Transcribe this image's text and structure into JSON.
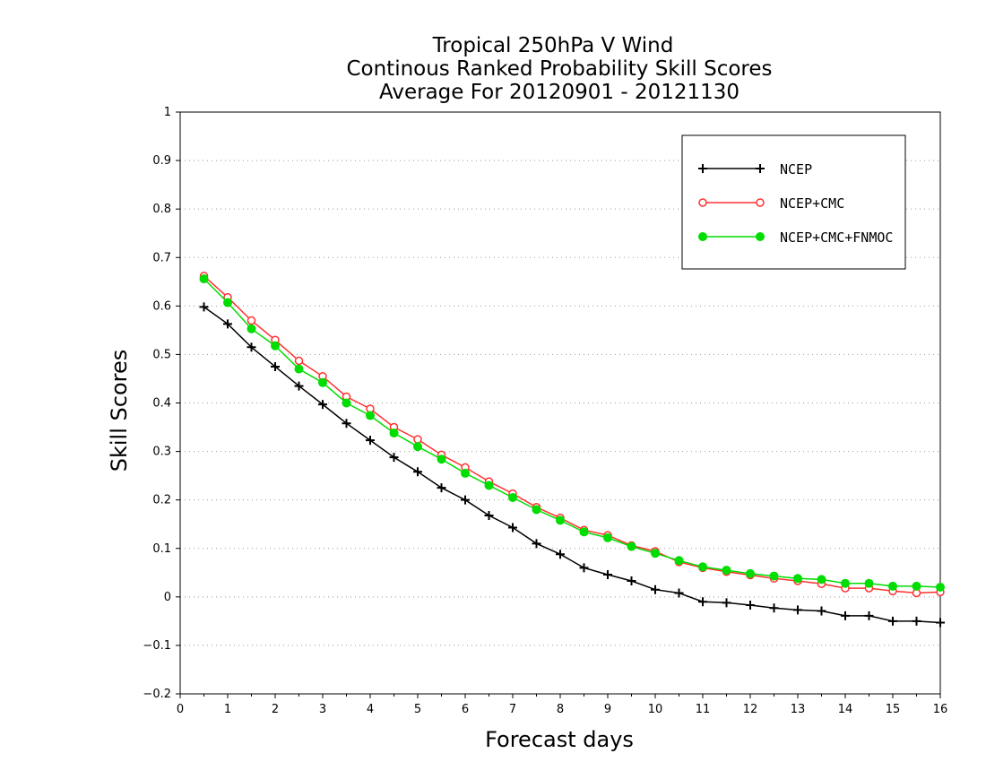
{
  "chart_data": {
    "type": "line",
    "title_lines": [
      "Tropical 250hPa V Wind",
      "Continous Ranked Probability Skill Scores",
      "Average For 20120901 - 20121130"
    ],
    "xlabel": "Forecast days",
    "ylabel": "Skill Scores",
    "xlim": [
      0,
      16
    ],
    "ylim": [
      -0.2,
      1
    ],
    "xticks": [
      0,
      1,
      2,
      3,
      4,
      5,
      6,
      7,
      8,
      9,
      10,
      11,
      12,
      13,
      14,
      15,
      16
    ],
    "xtick_labels": [
      "0",
      "1",
      "2",
      "3",
      "4",
      "5",
      "6",
      "7",
      "8",
      "9",
      "10",
      "11",
      "12",
      "13",
      "14",
      "15",
      "16"
    ],
    "yticks": [
      -0.2,
      -0.1,
      0,
      0.1,
      0.2,
      0.3,
      0.4,
      0.5,
      0.6,
      0.7,
      0.8,
      0.9,
      1
    ],
    "ytick_labels": [
      "−0.2",
      "−0.1",
      "0",
      "0.1",
      "0.2",
      "0.3",
      "0.4",
      "0.5",
      "0.6",
      "0.7",
      "0.8",
      "0.9",
      "1"
    ],
    "grid": "horizontal-dotted",
    "legend_position": "top-right",
    "x": [
      0.5,
      1,
      1.5,
      2,
      2.5,
      3,
      3.5,
      4,
      4.5,
      5,
      5.5,
      6,
      6.5,
      7,
      7.5,
      8,
      8.5,
      9,
      9.5,
      10,
      10.5,
      11,
      11.5,
      12,
      12.5,
      13,
      13.5,
      14,
      14.5,
      15,
      15.5,
      16
    ],
    "series": [
      {
        "name": "NCEP",
        "color": "#000000",
        "marker": "plus",
        "values": [
          0.598,
          0.563,
          0.515,
          0.475,
          0.435,
          0.397,
          0.358,
          0.323,
          0.288,
          0.258,
          0.225,
          0.2,
          0.168,
          0.143,
          0.11,
          0.088,
          0.06,
          0.046,
          0.033,
          0.015,
          0.008,
          -0.01,
          -0.012,
          -0.017,
          -0.023,
          -0.027,
          -0.029,
          -0.039,
          -0.039,
          -0.05,
          -0.05,
          -0.053
        ]
      },
      {
        "name": "NCEP+CMC",
        "color": "#ff3030",
        "marker": "open-circle",
        "values": [
          0.662,
          0.618,
          0.57,
          0.53,
          0.487,
          0.455,
          0.413,
          0.388,
          0.35,
          0.325,
          0.293,
          0.267,
          0.238,
          0.213,
          0.185,
          0.163,
          0.138,
          0.127,
          0.106,
          0.094,
          0.072,
          0.06,
          0.052,
          0.045,
          0.038,
          0.033,
          0.027,
          0.018,
          0.018,
          0.012,
          0.008,
          0.01
        ]
      },
      {
        "name": "NCEP+CMC+FNMOC",
        "color": "#00dd00",
        "marker": "filled-circle",
        "values": [
          0.656,
          0.607,
          0.553,
          0.518,
          0.47,
          0.442,
          0.4,
          0.374,
          0.338,
          0.31,
          0.284,
          0.255,
          0.23,
          0.205,
          0.18,
          0.158,
          0.134,
          0.122,
          0.104,
          0.09,
          0.075,
          0.062,
          0.055,
          0.048,
          0.043,
          0.038,
          0.036,
          0.028,
          0.028,
          0.022,
          0.022,
          0.02
        ]
      }
    ]
  }
}
